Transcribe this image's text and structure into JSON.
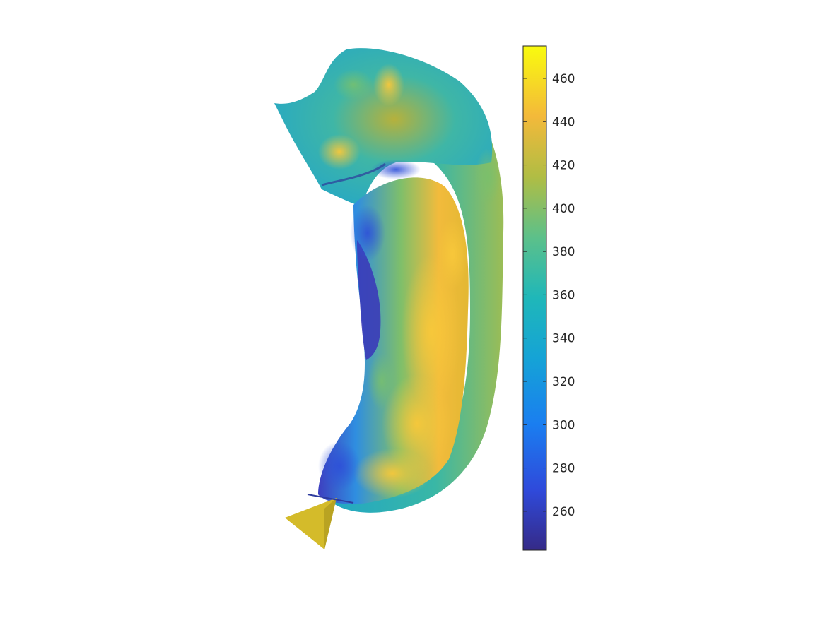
{
  "figure": {
    "background": "#ffffff",
    "surface": {
      "description_colors": {
        "low": "#3e26a8",
        "mid": "#1ab2d1",
        "high": "#f9c932"
      }
    },
    "colorbar": {
      "colormap": "parula",
      "min": 242,
      "max": 475,
      "ticks": [
        {
          "value": 460,
          "label": "460"
        },
        {
          "value": 440,
          "label": "440"
        },
        {
          "value": 420,
          "label": "420"
        },
        {
          "value": 400,
          "label": "400"
        },
        {
          "value": 380,
          "label": "380"
        },
        {
          "value": 360,
          "label": "360"
        },
        {
          "value": 340,
          "label": "340"
        },
        {
          "value": 320,
          "label": "320"
        },
        {
          "value": 300,
          "label": "300"
        },
        {
          "value": 280,
          "label": "280"
        },
        {
          "value": 260,
          "label": "260"
        }
      ]
    }
  }
}
